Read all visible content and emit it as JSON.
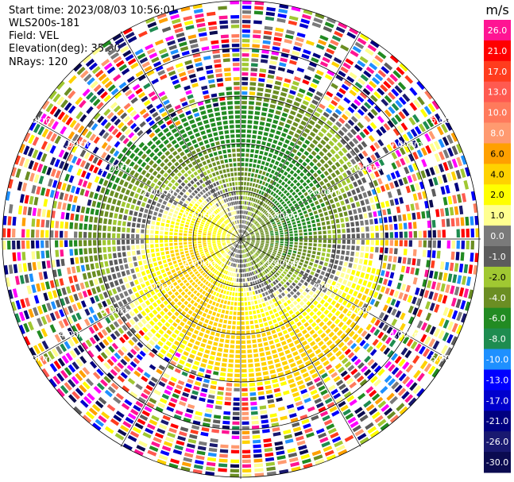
{
  "header": {
    "start_time": "Start time: 2023/08/03 10:56:01",
    "instrument": "WLS200s-181",
    "field": "Field: VEL",
    "elevation": "Elevation(deg): 35.30",
    "nrays": "NRays: 120"
  },
  "colorbar": {
    "unit": "m/s",
    "levels": [
      {
        "label": "26.0",
        "color": "#ff1493"
      },
      {
        "label": "21.0",
        "color": "#ff0000"
      },
      {
        "label": "17.0",
        "color": "#ff3c1e"
      },
      {
        "label": "13.0",
        "color": "#ff5a50"
      },
      {
        "label": "10.0",
        "color": "#ff7a5c"
      },
      {
        "label": "8.0",
        "color": "#ff9a70"
      },
      {
        "label": "6.0",
        "color": "#ffa000"
      },
      {
        "label": "4.0",
        "color": "#ffd200"
      },
      {
        "label": "2.0",
        "color": "#ffff00"
      },
      {
        "label": "1.0",
        "color": "#ffff90"
      },
      {
        "label": "0.0",
        "color": "#7a7a7a"
      },
      {
        "label": "-1.0",
        "color": "#5c5c5c"
      },
      {
        "label": "-2.0",
        "color": "#a0c832"
      },
      {
        "label": "-4.0",
        "color": "#6b8e23"
      },
      {
        "label": "-6.0",
        "color": "#228b22"
      },
      {
        "label": "-8.0",
        "color": "#1e8c50"
      },
      {
        "label": "-10.0",
        "color": "#1e90ff"
      },
      {
        "label": "-13.0",
        "color": "#0000ff"
      },
      {
        "label": "-17.0",
        "color": "#0000cd"
      },
      {
        "label": "-21.0",
        "color": "#000080"
      },
      {
        "label": "-26.0",
        "color": "#191970"
      },
      {
        "label": "-30.0",
        "color": "#0b0b50"
      }
    ]
  },
  "range_rings": [
    "1.00km",
    "2.00km",
    "3.00km",
    "4.00km",
    "5.00km"
  ],
  "chart_data": {
    "type": "heatmap",
    "projection": "polar PPI",
    "field": "VEL",
    "unit": "m/s",
    "nrays": 120,
    "range_rings_km": [
      1,
      2,
      3,
      4,
      5
    ],
    "max_range_km": 5,
    "value_min": -30,
    "value_max": 26,
    "pattern": {
      "near_zone_max_km": 3.1,
      "positive_core_azimuth_deg": 300,
      "negative_core_azimuth_deg": 150,
      "peak_speed_ms": 5,
      "far_range_noise": true
    }
  }
}
